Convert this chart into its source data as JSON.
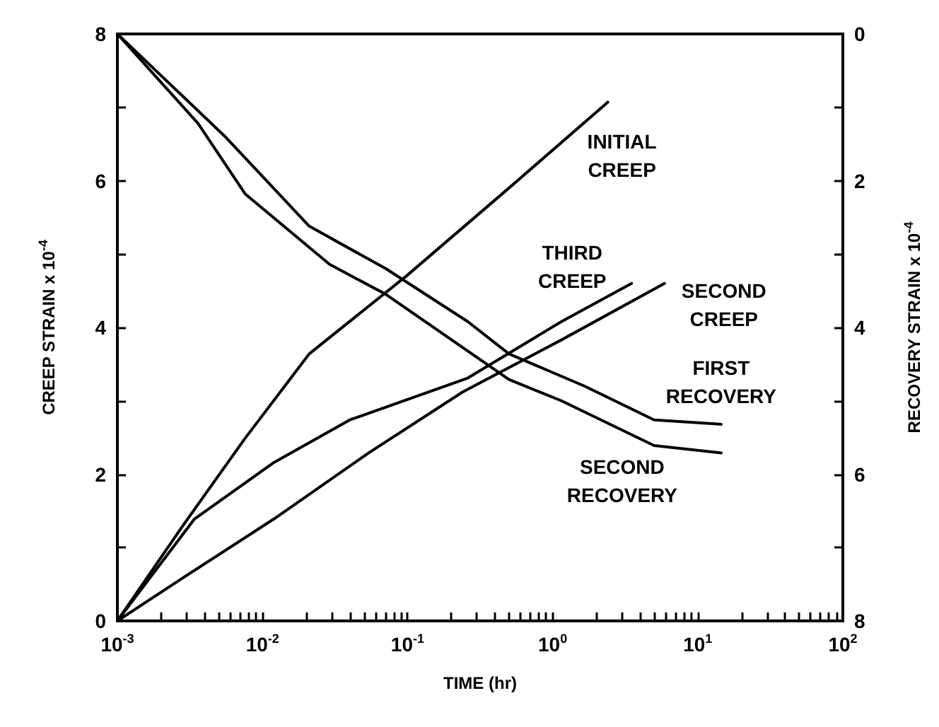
{
  "chart_data": {
    "type": "line",
    "xlabel": "TIME (hr)",
    "ylabel": "CREEP STRAIN x 10$^{-4}$",
    "y2label": "RECOVERY STRAIN x 10$^{-4}$",
    "log": "x",
    "grid": false,
    "legend": false,
    "marker": "none",
    "line_style": "solid",
    "xlim": [
      0.001,
      100
    ],
    "xticks": [
      {
        "value": 0.001,
        "label": "10$^{-3}$"
      },
      {
        "value": 0.002,
        "label": null
      },
      {
        "value": 0.003,
        "label": null
      },
      {
        "value": 0.004,
        "label": null
      },
      {
        "value": 0.005,
        "label": null
      },
      {
        "value": 0.006,
        "label": null
      },
      {
        "value": 0.007,
        "label": null
      },
      {
        "value": 0.008,
        "label": null
      },
      {
        "value": 0.009,
        "label": null
      },
      {
        "value": 0.01,
        "label": "10$^{-2}$"
      },
      {
        "value": 0.02,
        "label": null
      },
      {
        "value": 0.03,
        "label": null
      },
      {
        "value": 0.04,
        "label": null
      },
      {
        "value": 0.05,
        "label": null
      },
      {
        "value": 0.06,
        "label": null
      },
      {
        "value": 0.07,
        "label": null
      },
      {
        "value": 0.08,
        "label": null
      },
      {
        "value": 0.09,
        "label": null
      },
      {
        "value": 0.1,
        "label": "10$^{-1}$"
      },
      {
        "value": 0.2,
        "label": null
      },
      {
        "value": 0.3,
        "label": null
      },
      {
        "value": 0.4,
        "label": null
      },
      {
        "value": 0.5,
        "label": null
      },
      {
        "value": 0.6,
        "label": null
      },
      {
        "value": 0.7,
        "label": null
      },
      {
        "value": 0.8,
        "label": null
      },
      {
        "value": 0.9,
        "label": null
      },
      {
        "value": 1,
        "label": "10$^{0}$"
      },
      {
        "value": 2,
        "label": null
      },
      {
        "value": 3,
        "label": null
      },
      {
        "value": 4,
        "label": null
      },
      {
        "value": 5,
        "label": null
      },
      {
        "value": 6,
        "label": null
      },
      {
        "value": 7,
        "label": null
      },
      {
        "value": 8,
        "label": null
      },
      {
        "value": 9,
        "label": null
      },
      {
        "value": 10,
        "label": "10$^{1}$"
      },
      {
        "value": 20,
        "label": null
      },
      {
        "value": 30,
        "label": null
      },
      {
        "value": 40,
        "label": null
      },
      {
        "value": 50,
        "label": null
      },
      {
        "value": 60,
        "label": null
      },
      {
        "value": 70,
        "label": null
      },
      {
        "value": 80,
        "label": null
      },
      {
        "value": 90,
        "label": null
      },
      {
        "value": 100,
        "label": "10$^{2}$"
      }
    ],
    "ylim": [
      0,
      8
    ],
    "yticks": [
      0,
      {
        "value": 1,
        "label": null
      },
      2,
      {
        "value": 3,
        "label": null
      },
      4,
      {
        "value": 5,
        "label": null
      },
      6,
      {
        "value": 7,
        "label": null
      },
      8
    ],
    "y2lim": [
      8,
      0
    ],
    "y2ticks": [
      0,
      {
        "value": 1,
        "label": null
      },
      2,
      {
        "value": 3,
        "label": null
      },
      4,
      {
        "value": 5,
        "label": null
      },
      6,
      {
        "value": 7,
        "label": null
      },
      8
    ],
    "series": [
      {
        "name": "INITIAL CREEP",
        "color": "#000000",
        "x": [
          0.001,
          0.0029,
          0.0076,
          0.021,
          0.098,
          0.5,
          2.4
        ],
        "values": [
          0,
          1.33,
          2.49,
          3.64,
          4.7,
          5.9,
          7.07
        ]
      },
      {
        "name": "THIRD CREEP",
        "color": "#000000",
        "x": [
          0.001,
          0.0034,
          0.012,
          0.04,
          0.26,
          1.15,
          3.5
        ],
        "values": [
          0,
          1.39,
          2.16,
          2.74,
          3.31,
          4.08,
          4.6
        ]
      },
      {
        "name": "SECOND CREEP",
        "color": "#000000",
        "x": [
          0.001,
          0.0027,
          0.012,
          0.054,
          0.24,
          1.15,
          5.9
        ],
        "values": [
          0,
          0.56,
          1.39,
          2.29,
          3.12,
          3.83,
          4.6
        ]
      },
      {
        "name": "FIRST RECOVERY",
        "color": "#000000",
        "axis": "y2",
        "x": [
          0.001,
          0.0056,
          0.021,
          0.071,
          0.26,
          0.5,
          1.66,
          5,
          14.5
        ],
        "values": [
          0,
          1.41,
          2.62,
          3.2,
          3.92,
          4.36,
          4.8,
          5.26,
          5.32
        ]
      },
      {
        "name": "SECOND RECOVERY",
        "color": "#000000",
        "axis": "y2",
        "x": [
          0.001,
          0.0036,
          0.0076,
          0.029,
          0.071,
          0.5,
          1.15,
          5,
          14.5
        ],
        "values": [
          0,
          1.22,
          2.18,
          3.14,
          3.55,
          4.71,
          5.0,
          5.61,
          5.71
        ]
      }
    ]
  }
}
